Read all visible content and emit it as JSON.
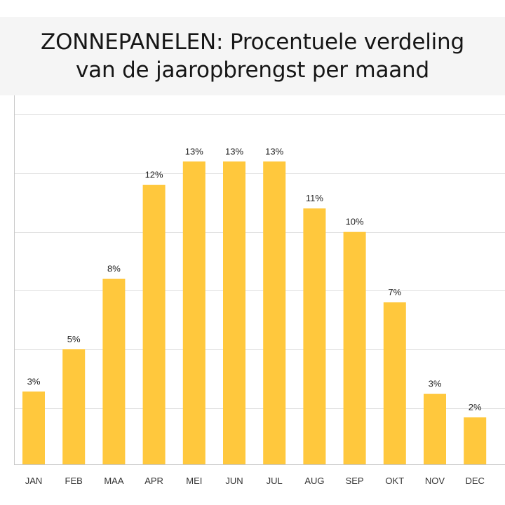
{
  "title": {
    "line1": "ZONNEPANELEN: Procentuele verdeling",
    "line2": "van de jaaropbrengst per maand"
  },
  "colors": {
    "bar": "#FFC83D",
    "grid": "#e3e3e3",
    "axis": "#c8c8c8",
    "title_band": "#f5f5f5"
  },
  "chart_data": {
    "type": "bar",
    "title": "ZONNEPANELEN: Procentuele verdeling van de jaaropbrengst per maand",
    "categories": [
      "JAN",
      "FEB",
      "MAA",
      "APR",
      "MEI",
      "JUN",
      "JUL",
      "AUG",
      "SEP",
      "OKT",
      "NOV",
      "DEC"
    ],
    "values": [
      3.1,
      4.9,
      7.9,
      11.9,
      12.9,
      12.9,
      12.9,
      10.9,
      9.9,
      6.9,
      3.0,
      2.0
    ],
    "value_labels": [
      "3%",
      "5%",
      "8%",
      "12%",
      "13%",
      "13%",
      "13%",
      "11%",
      "10%",
      "7%",
      "3%",
      "2%"
    ],
    "xlabel": "",
    "ylabel": "",
    "ylim": [
      0,
      15
    ],
    "gridlines": [
      2.4,
      4.9,
      7.4,
      9.9,
      12.4,
      14.9
    ],
    "grid": true,
    "legend": "none"
  }
}
